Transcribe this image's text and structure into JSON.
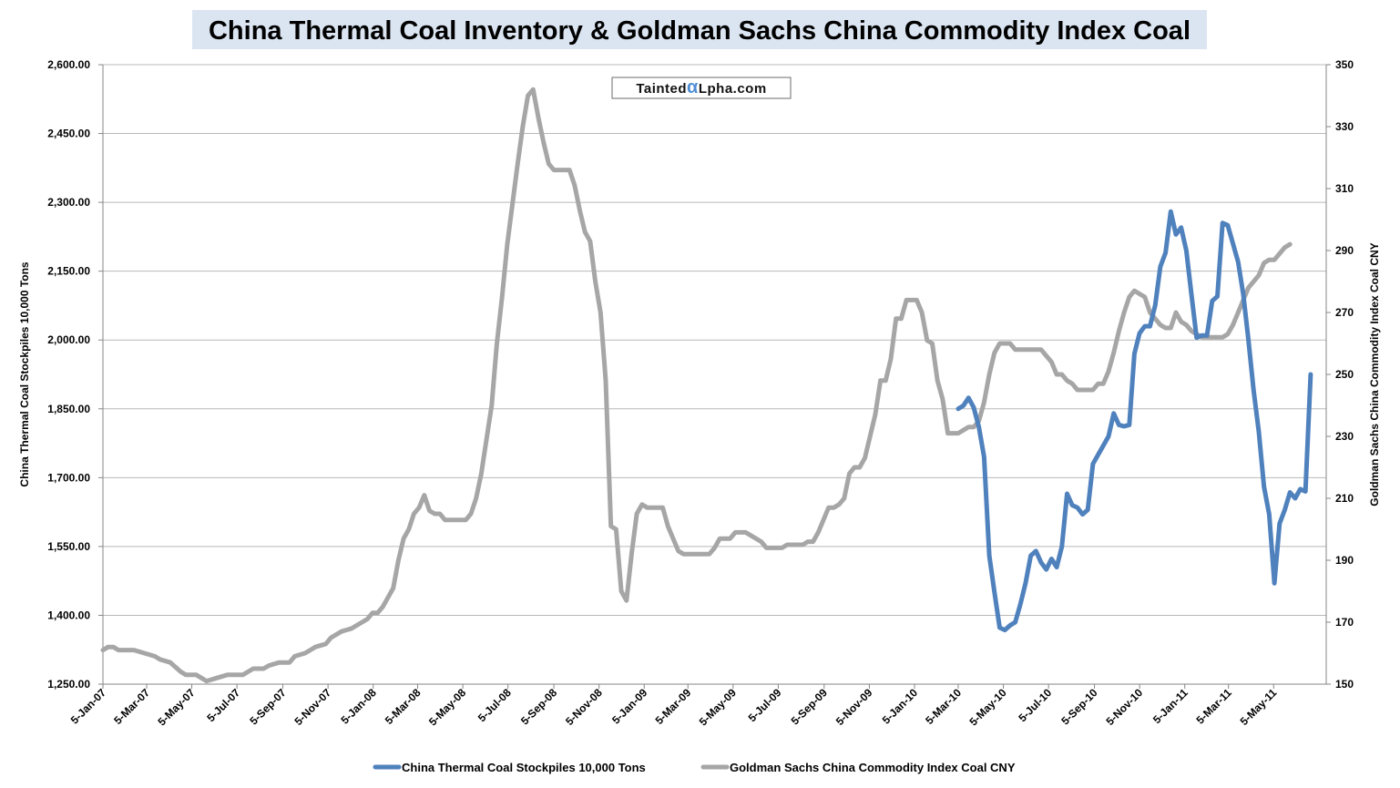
{
  "title": "China Thermal Coal Inventory & Goldman Sachs China Commodity Index Coal",
  "watermark": {
    "text": "TaintedαLpha.com",
    "accent_color": "#4f8fd6"
  },
  "chart_data": {
    "type": "line",
    "y_left": {
      "label": "China Thermal Coal Stockpiles 10,000 Tons",
      "min": 1250,
      "max": 2600,
      "ticks": [
        "1,250.00",
        "1,400.00",
        "1,550.00",
        "1,700.00",
        "1,850.00",
        "2,000.00",
        "2,150.00",
        "2,300.00",
        "2,450.00",
        "2,600.00"
      ]
    },
    "y_right": {
      "label": "Goldman Sachs China Commodity Index Coal CNY",
      "min": 150,
      "max": 350,
      "ticks": [
        "150",
        "170",
        "190",
        "210",
        "230",
        "250",
        "270",
        "290",
        "310",
        "330",
        "350"
      ]
    },
    "x_axis": {
      "start": "2007-01-05",
      "end": "2011-07-15",
      "tick_labels": [
        "5-Jan-07",
        "5-Mar-07",
        "5-May-07",
        "5-Jul-07",
        "5-Sep-07",
        "5-Nov-07",
        "5-Jan-08",
        "5-Mar-08",
        "5-May-08",
        "5-Jul-08",
        "5-Sep-08",
        "5-Nov-08",
        "5-Jan-09",
        "5-Mar-09",
        "5-May-09",
        "5-Jul-09",
        "5-Sep-09",
        "5-Nov-09",
        "5-Jan-10",
        "5-Mar-10",
        "5-May-10",
        "5-Jul-10",
        "5-Sep-10",
        "5-Nov-10",
        "5-Jan-11",
        "5-Mar-11",
        "5-May-11"
      ],
      "tick_dates": [
        "2007-01-05",
        "2007-03-05",
        "2007-05-05",
        "2007-07-05",
        "2007-09-05",
        "2007-11-05",
        "2008-01-05",
        "2008-03-05",
        "2008-05-05",
        "2008-07-05",
        "2008-09-05",
        "2008-11-05",
        "2009-01-05",
        "2009-03-05",
        "2009-05-05",
        "2009-07-05",
        "2009-09-05",
        "2009-11-05",
        "2010-01-05",
        "2010-03-05",
        "2010-05-05",
        "2010-07-05",
        "2010-09-05",
        "2010-11-05",
        "2011-01-05",
        "2011-03-05",
        "2011-05-05"
      ]
    },
    "grid": true,
    "legend_position": "bottom",
    "series": [
      {
        "name": "China Thermal Coal Stockpiles 10,000 Tons",
        "axis": "left",
        "color": "#4f81bd",
        "points": [
          [
            "2010-03-05",
            1850
          ],
          [
            "2010-03-12",
            1857
          ],
          [
            "2010-03-19",
            1874
          ],
          [
            "2010-03-26",
            1853
          ],
          [
            "2010-04-02",
            1810
          ],
          [
            "2010-04-09",
            1745
          ],
          [
            "2010-04-16",
            1530
          ],
          [
            "2010-04-23",
            1450
          ],
          [
            "2010-04-30",
            1373
          ],
          [
            "2010-05-07",
            1368
          ],
          [
            "2010-05-14",
            1378
          ],
          [
            "2010-05-21",
            1385
          ],
          [
            "2010-05-28",
            1425
          ],
          [
            "2010-06-04",
            1470
          ],
          [
            "2010-06-11",
            1530
          ],
          [
            "2010-06-18",
            1540
          ],
          [
            "2010-06-25",
            1515
          ],
          [
            "2010-07-02",
            1500
          ],
          [
            "2010-07-09",
            1523
          ],
          [
            "2010-07-16",
            1505
          ],
          [
            "2010-07-23",
            1550
          ],
          [
            "2010-07-30",
            1665
          ],
          [
            "2010-08-06",
            1640
          ],
          [
            "2010-08-13",
            1635
          ],
          [
            "2010-08-20",
            1620
          ],
          [
            "2010-08-27",
            1630
          ],
          [
            "2010-09-03",
            1730
          ],
          [
            "2010-09-10",
            1750
          ],
          [
            "2010-09-17",
            1770
          ],
          [
            "2010-09-24",
            1790
          ],
          [
            "2010-10-01",
            1840
          ],
          [
            "2010-10-08",
            1815
          ],
          [
            "2010-10-15",
            1812
          ],
          [
            "2010-10-22",
            1815
          ],
          [
            "2010-10-29",
            1970
          ],
          [
            "2010-11-05",
            2015
          ],
          [
            "2010-11-12",
            2030
          ],
          [
            "2010-11-19",
            2030
          ],
          [
            "2010-11-26",
            2075
          ],
          [
            "2010-12-03",
            2160
          ],
          [
            "2010-12-10",
            2190
          ],
          [
            "2010-12-17",
            2280
          ],
          [
            "2010-12-24",
            2230
          ],
          [
            "2010-12-31",
            2245
          ],
          [
            "2011-01-07",
            2195
          ],
          [
            "2011-01-14",
            2100
          ],
          [
            "2011-01-21",
            2005
          ],
          [
            "2011-01-28",
            2010
          ],
          [
            "2011-02-04",
            2010
          ],
          [
            "2011-02-11",
            2085
          ],
          [
            "2011-02-18",
            2095
          ],
          [
            "2011-02-25",
            2255
          ],
          [
            "2011-03-04",
            2250
          ],
          [
            "2011-03-11",
            2210
          ],
          [
            "2011-03-18",
            2170
          ],
          [
            "2011-03-25",
            2100
          ],
          [
            "2011-04-01",
            2000
          ],
          [
            "2011-04-08",
            1890
          ],
          [
            "2011-04-15",
            1800
          ],
          [
            "2011-04-22",
            1680
          ],
          [
            "2011-04-29",
            1620
          ],
          [
            "2011-05-06",
            1470
          ],
          [
            "2011-05-13",
            1600
          ],
          [
            "2011-05-20",
            1630
          ],
          [
            "2011-05-27",
            1668
          ],
          [
            "2011-06-03",
            1655
          ],
          [
            "2011-06-10",
            1675
          ],
          [
            "2011-06-17",
            1670
          ],
          [
            "2011-06-24",
            1925
          ]
        ]
      },
      {
        "name": "Goldman Sachs China Commodity Index Coal CNY",
        "axis": "right",
        "color": "#a6a6a6",
        "points": [
          [
            "2007-01-05",
            161
          ],
          [
            "2007-01-12",
            162
          ],
          [
            "2007-01-19",
            162
          ],
          [
            "2007-01-26",
            161
          ],
          [
            "2007-02-02",
            161
          ],
          [
            "2007-02-16",
            161
          ],
          [
            "2007-03-02",
            160
          ],
          [
            "2007-03-16",
            159
          ],
          [
            "2007-03-23",
            158
          ],
          [
            "2007-04-06",
            157
          ],
          [
            "2007-04-20",
            154
          ],
          [
            "2007-04-27",
            153
          ],
          [
            "2007-05-11",
            153
          ],
          [
            "2007-05-18",
            152
          ],
          [
            "2007-05-25",
            151
          ],
          [
            "2007-06-08",
            152
          ],
          [
            "2007-06-22",
            153
          ],
          [
            "2007-07-13",
            153
          ],
          [
            "2007-07-20",
            154
          ],
          [
            "2007-07-27",
            155
          ],
          [
            "2007-08-10",
            155
          ],
          [
            "2007-08-17",
            156
          ],
          [
            "2007-08-31",
            157
          ],
          [
            "2007-09-14",
            157
          ],
          [
            "2007-09-21",
            159
          ],
          [
            "2007-10-05",
            160
          ],
          [
            "2007-10-12",
            161
          ],
          [
            "2007-10-19",
            162
          ],
          [
            "2007-11-02",
            163
          ],
          [
            "2007-11-09",
            165
          ],
          [
            "2007-11-23",
            167
          ],
          [
            "2007-12-07",
            168
          ],
          [
            "2007-12-14",
            169
          ],
          [
            "2007-12-21",
            170
          ],
          [
            "2007-12-28",
            171
          ],
          [
            "2008-01-04",
            173
          ],
          [
            "2008-01-11",
            173
          ],
          [
            "2008-01-18",
            175
          ],
          [
            "2008-01-25",
            178
          ],
          [
            "2008-02-01",
            181
          ],
          [
            "2008-02-08",
            190
          ],
          [
            "2008-02-15",
            197
          ],
          [
            "2008-02-22",
            200
          ],
          [
            "2008-02-29",
            205
          ],
          [
            "2008-03-07",
            207
          ],
          [
            "2008-03-14",
            211
          ],
          [
            "2008-03-21",
            206
          ],
          [
            "2008-03-28",
            205
          ],
          [
            "2008-04-04",
            205
          ],
          [
            "2008-04-11",
            203
          ],
          [
            "2008-04-18",
            203
          ],
          [
            "2008-05-02",
            203
          ],
          [
            "2008-05-09",
            203
          ],
          [
            "2008-05-16",
            205
          ],
          [
            "2008-05-23",
            210
          ],
          [
            "2008-05-30",
            218
          ],
          [
            "2008-06-06",
            229
          ],
          [
            "2008-06-13",
            240
          ],
          [
            "2008-06-20",
            260
          ],
          [
            "2008-06-27",
            275
          ],
          [
            "2008-07-04",
            292
          ],
          [
            "2008-07-11",
            305
          ],
          [
            "2008-07-18",
            318
          ],
          [
            "2008-07-25",
            330
          ],
          [
            "2008-08-01",
            340
          ],
          [
            "2008-08-08",
            342
          ],
          [
            "2008-08-15",
            333
          ],
          [
            "2008-08-22",
            325
          ],
          [
            "2008-08-29",
            318
          ],
          [
            "2008-09-05",
            316
          ],
          [
            "2008-09-26",
            316
          ],
          [
            "2008-10-03",
            311
          ],
          [
            "2008-10-10",
            303
          ],
          [
            "2008-10-17",
            296
          ],
          [
            "2008-10-24",
            293
          ],
          [
            "2008-10-31",
            280
          ],
          [
            "2008-11-07",
            270
          ],
          [
            "2008-11-14",
            248
          ],
          [
            "2008-11-21",
            201
          ],
          [
            "2008-11-28",
            200
          ],
          [
            "2008-12-05",
            180
          ],
          [
            "2008-12-12",
            177
          ],
          [
            "2008-12-19",
            192
          ],
          [
            "2008-12-26",
            205
          ],
          [
            "2009-01-02",
            208
          ],
          [
            "2009-01-09",
            207
          ],
          [
            "2009-01-30",
            207
          ],
          [
            "2009-02-06",
            201
          ],
          [
            "2009-02-13",
            197
          ],
          [
            "2009-02-20",
            193
          ],
          [
            "2009-02-27",
            192
          ],
          [
            "2009-04-03",
            192
          ],
          [
            "2009-04-10",
            194
          ],
          [
            "2009-04-17",
            197
          ],
          [
            "2009-05-01",
            197
          ],
          [
            "2009-05-08",
            199
          ],
          [
            "2009-05-22",
            199
          ],
          [
            "2009-05-29",
            198
          ],
          [
            "2009-06-05",
            197
          ],
          [
            "2009-06-12",
            196
          ],
          [
            "2009-06-19",
            194
          ],
          [
            "2009-07-10",
            194
          ],
          [
            "2009-07-17",
            195
          ],
          [
            "2009-08-07",
            195
          ],
          [
            "2009-08-14",
            196
          ],
          [
            "2009-08-21",
            196
          ],
          [
            "2009-08-28",
            199
          ],
          [
            "2009-09-04",
            203
          ],
          [
            "2009-09-11",
            207
          ],
          [
            "2009-09-18",
            207
          ],
          [
            "2009-09-25",
            208
          ],
          [
            "2009-10-02",
            210
          ],
          [
            "2009-10-09",
            218
          ],
          [
            "2009-10-16",
            220
          ],
          [
            "2009-10-23",
            220
          ],
          [
            "2009-10-30",
            223
          ],
          [
            "2009-11-06",
            230
          ],
          [
            "2009-11-13",
            237
          ],
          [
            "2009-11-20",
            248
          ],
          [
            "2009-11-27",
            248
          ],
          [
            "2009-12-04",
            255
          ],
          [
            "2009-12-11",
            268
          ],
          [
            "2009-12-18",
            268
          ],
          [
            "2009-12-25",
            274
          ],
          [
            "2010-01-08",
            274
          ],
          [
            "2010-01-15",
            270
          ],
          [
            "2010-01-22",
            261
          ],
          [
            "2010-01-29",
            260
          ],
          [
            "2010-02-05",
            248
          ],
          [
            "2010-02-12",
            242
          ],
          [
            "2010-02-19",
            231
          ],
          [
            "2010-03-05",
            231
          ],
          [
            "2010-03-12",
            232
          ],
          [
            "2010-03-19",
            233
          ],
          [
            "2010-03-26",
            233
          ],
          [
            "2010-04-02",
            235
          ],
          [
            "2010-04-09",
            241
          ],
          [
            "2010-04-16",
            250
          ],
          [
            "2010-04-23",
            257
          ],
          [
            "2010-04-30",
            260
          ],
          [
            "2010-05-14",
            260
          ],
          [
            "2010-05-21",
            258
          ],
          [
            "2010-06-25",
            258
          ],
          [
            "2010-07-02",
            256
          ],
          [
            "2010-07-09",
            254
          ],
          [
            "2010-07-16",
            250
          ],
          [
            "2010-07-23",
            250
          ],
          [
            "2010-07-30",
            248
          ],
          [
            "2010-08-06",
            247
          ],
          [
            "2010-08-13",
            245
          ],
          [
            "2010-08-20",
            245
          ],
          [
            "2010-09-03",
            245
          ],
          [
            "2010-09-10",
            247
          ],
          [
            "2010-09-17",
            247
          ],
          [
            "2010-09-24",
            251
          ],
          [
            "2010-10-01",
            257
          ],
          [
            "2010-10-08",
            264
          ],
          [
            "2010-10-15",
            270
          ],
          [
            "2010-10-22",
            275
          ],
          [
            "2010-10-29",
            277
          ],
          [
            "2010-11-05",
            276
          ],
          [
            "2010-11-12",
            275
          ],
          [
            "2010-11-19",
            270
          ],
          [
            "2010-11-26",
            268
          ],
          [
            "2010-12-03",
            266
          ],
          [
            "2010-12-10",
            265
          ],
          [
            "2010-12-17",
            265
          ],
          [
            "2010-12-24",
            270
          ],
          [
            "2010-12-31",
            267
          ],
          [
            "2011-01-07",
            266
          ],
          [
            "2011-01-14",
            264
          ],
          [
            "2011-01-21",
            263
          ],
          [
            "2011-01-28",
            262
          ],
          [
            "2011-02-25",
            262
          ],
          [
            "2011-03-04",
            263
          ],
          [
            "2011-03-11",
            266
          ],
          [
            "2011-03-18",
            270
          ],
          [
            "2011-03-25",
            274
          ],
          [
            "2011-04-01",
            278
          ],
          [
            "2011-04-08",
            280
          ],
          [
            "2011-04-15",
            282
          ],
          [
            "2011-04-22",
            286
          ],
          [
            "2011-04-29",
            287
          ],
          [
            "2011-05-06",
            287
          ],
          [
            "2011-05-13",
            289
          ],
          [
            "2011-05-20",
            291
          ],
          [
            "2011-05-27",
            292
          ]
        ]
      }
    ]
  }
}
